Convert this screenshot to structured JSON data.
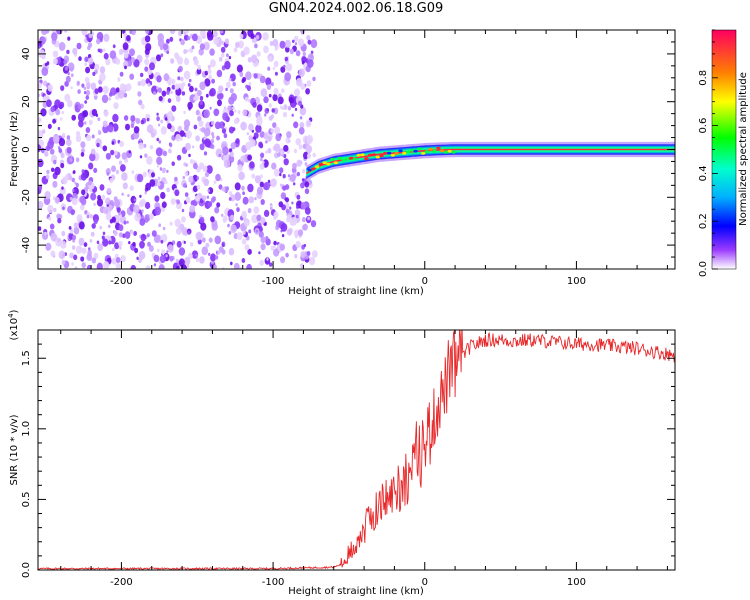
{
  "title": "GN04.2024.002.06.18.G09",
  "chart_data": [
    {
      "type": "heatmap",
      "xlabel": "Height of straight line (km)",
      "ylabel": "Frequency (Hz)",
      "xlim": [
        -255,
        165
      ],
      "ylim": [
        -50,
        50
      ],
      "xticks": [
        -200,
        -100,
        0,
        100
      ],
      "yticks": [
        -40,
        -20,
        0,
        20,
        40
      ],
      "colorbar": {
        "label": "Normalized spectral amplitude",
        "range": [
          0,
          1
        ],
        "ticks": [
          0.0,
          0.2,
          0.4,
          0.6,
          0.8
        ]
      },
      "noise_region_x": [
        -255,
        -75
      ],
      "signal_track": {
        "x": [
          -78,
          -70,
          -60,
          -50,
          -40,
          -30,
          -20,
          -10,
          0,
          10,
          20,
          40,
          80,
          120,
          165
        ],
        "y": [
          -10,
          -7,
          -5,
          -4,
          -3,
          -2,
          -1.5,
          -1,
          -0.5,
          -0.2,
          0,
          0,
          0,
          0,
          0
        ]
      }
    },
    {
      "type": "line",
      "xlabel": "Height of straight line (km)",
      "ylabel": "SNR (10 * v/v)",
      "scale_label": "(x10",
      "scale_exp": "4",
      "scale_close": ")",
      "xlim": [
        -255,
        165
      ],
      "ylim": [
        0,
        1.7
      ],
      "xticks": [
        -200,
        -100,
        0,
        100
      ],
      "yticks": [
        0.0,
        0.5,
        1.0,
        1.5
      ],
      "ytick_labels": [
        "0.0",
        "0.5",
        "1.0",
        "1.5"
      ],
      "series": [
        {
          "color": "#e8282a",
          "x": [
            -255,
            -200,
            -150,
            -100,
            -60,
            -55,
            -50,
            -45,
            -40,
            -35,
            -30,
            -25,
            -20,
            -15,
            -10,
            -5,
            0,
            5,
            10,
            15,
            20,
            25,
            30,
            40,
            50,
            60,
            70,
            80,
            90,
            100,
            110,
            120,
            130,
            140,
            150,
            160,
            165
          ],
          "y": [
            0.01,
            0.01,
            0.01,
            0.01,
            0.02,
            0.04,
            0.1,
            0.2,
            0.3,
            0.38,
            0.45,
            0.5,
            0.55,
            0.62,
            0.7,
            0.8,
            0.9,
            1.05,
            1.2,
            1.35,
            1.45,
            1.52,
            1.58,
            1.63,
            1.63,
            1.62,
            1.63,
            1.62,
            1.61,
            1.6,
            1.6,
            1.59,
            1.58,
            1.57,
            1.55,
            1.53,
            1.52
          ]
        }
      ]
    }
  ]
}
